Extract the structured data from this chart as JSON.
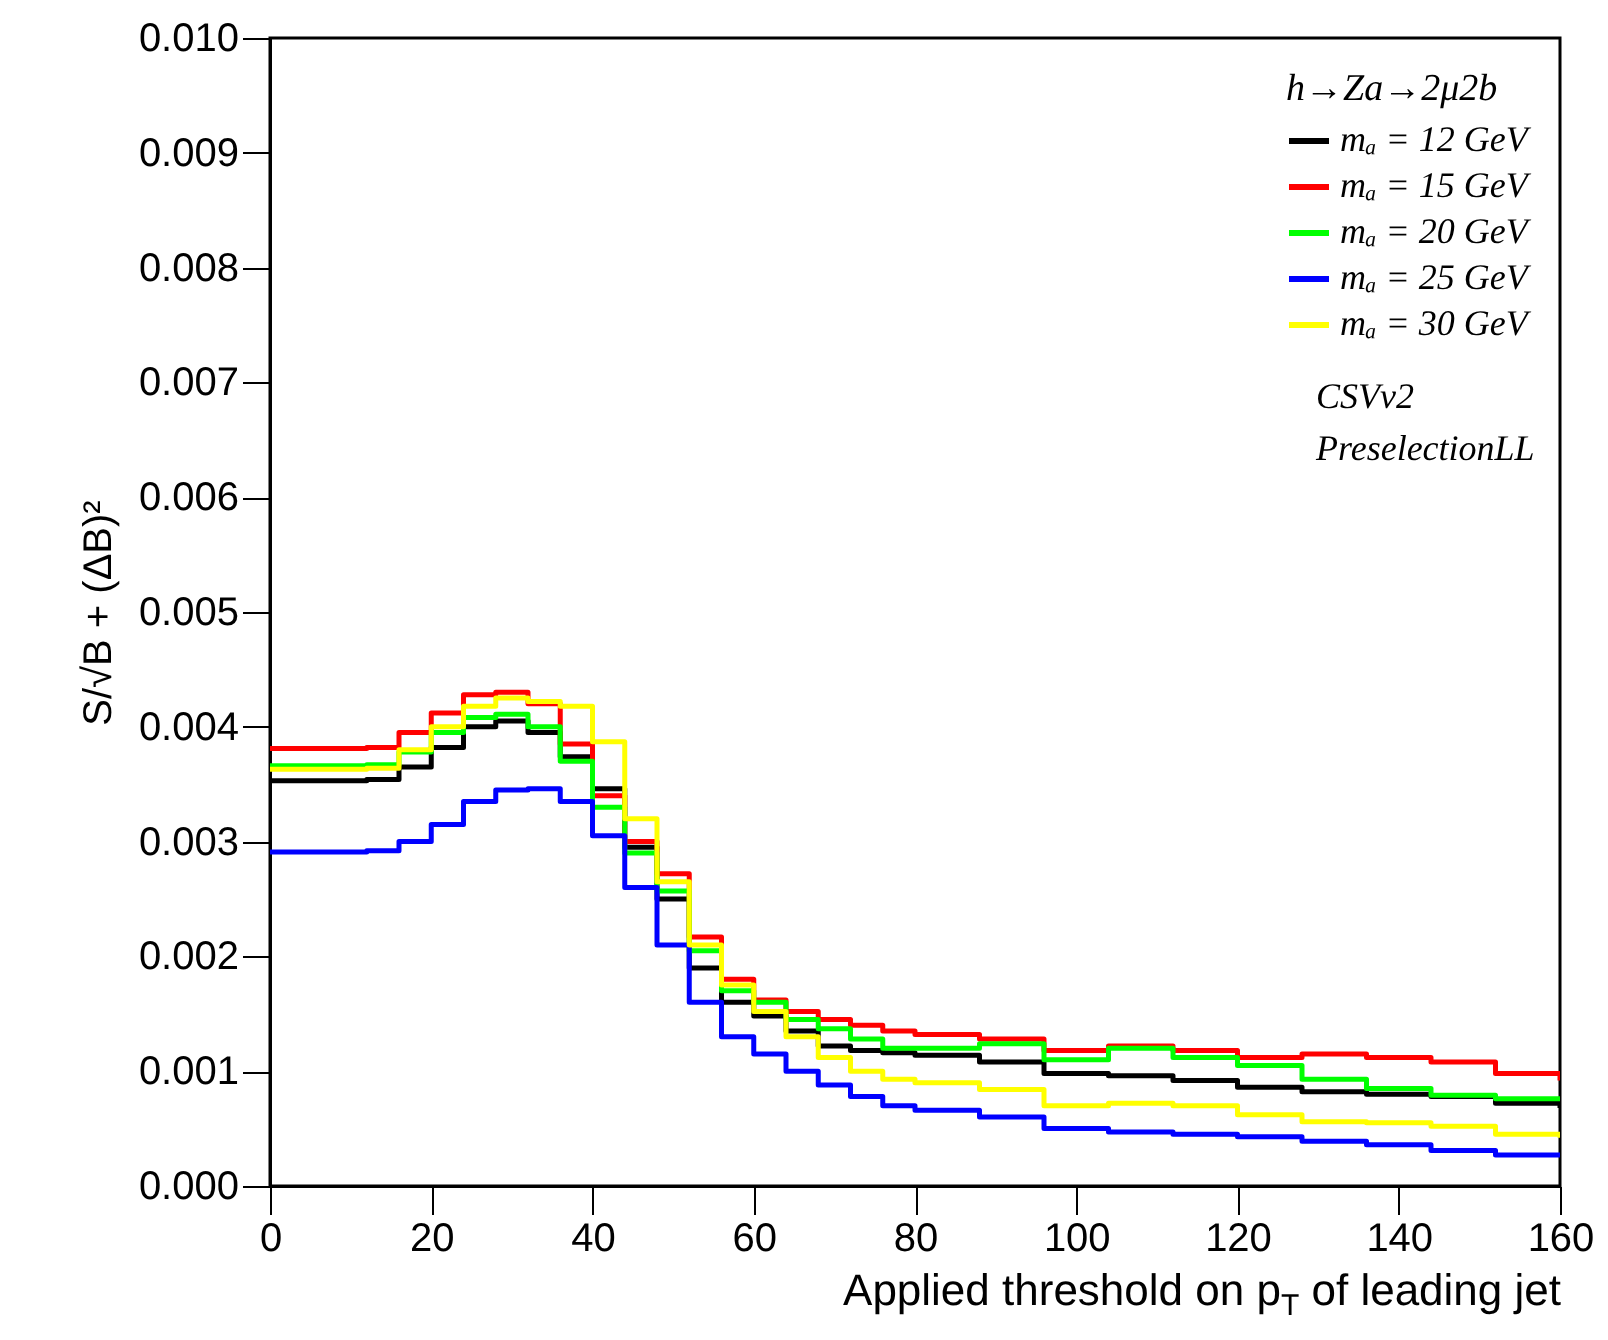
{
  "chart_data": {
    "type": "step",
    "xlabel": "Applied threshold on p$_{T}$ of leading jet",
    "ylabel": "S/√B + (ΔB)²",
    "legend_title": "h→Za→2μ2b",
    "annotations": [
      "CSVv2",
      "PreselectionLL"
    ],
    "x": [
      0,
      4,
      8,
      12,
      16,
      20,
      24,
      28,
      32,
      36,
      40,
      44,
      48,
      52,
      56,
      60,
      64,
      68,
      72,
      76,
      80,
      88,
      96,
      104,
      112,
      120,
      128,
      136,
      144,
      152,
      160
    ],
    "series": [
      {
        "name": "mₐ = 12 GeV",
        "color": "#000000",
        "values": [
          0.00353,
          0.00353,
          0.00353,
          0.00354,
          0.00365,
          0.00382,
          0.004,
          0.00405,
          0.00395,
          0.00374,
          0.00346,
          0.00295,
          0.0025,
          0.0019,
          0.0016,
          0.00148,
          0.00135,
          0.00122,
          0.00118,
          0.00116,
          0.00114,
          0.00108,
          0.00098,
          0.00096,
          0.00092,
          0.00086,
          0.00082,
          0.0008,
          0.00078,
          0.00072,
          0.00068
        ]
      },
      {
        "name": "mₐ = 15 GeV",
        "color": "#ff0000",
        "values": [
          0.00381,
          0.00381,
          0.00381,
          0.00382,
          0.00395,
          0.00412,
          0.00428,
          0.0043,
          0.0042,
          0.00385,
          0.0034,
          0.003,
          0.00272,
          0.00217,
          0.0018,
          0.00162,
          0.00152,
          0.00145,
          0.0014,
          0.00135,
          0.00132,
          0.00128,
          0.00118,
          0.00122,
          0.00118,
          0.00112,
          0.00115,
          0.00112,
          0.00108,
          0.00098,
          0.00092
        ]
      },
      {
        "name": "mₐ = 20 GeV",
        "color": "#00ff00",
        "values": [
          0.00366,
          0.00366,
          0.00366,
          0.00367,
          0.00378,
          0.00395,
          0.00408,
          0.00411,
          0.004,
          0.0037,
          0.0033,
          0.0029,
          0.00257,
          0.00205,
          0.0017,
          0.0016,
          0.00145,
          0.00137,
          0.00128,
          0.0012,
          0.0012,
          0.00124,
          0.0011,
          0.0012,
          0.00112,
          0.00105,
          0.00093,
          0.00085,
          0.00079,
          0.00076,
          0.00076
        ]
      },
      {
        "name": "mₐ = 25 GeV",
        "color": "#0000ff",
        "values": [
          0.00291,
          0.00291,
          0.00291,
          0.00292,
          0.003,
          0.00315,
          0.00335,
          0.00345,
          0.00346,
          0.00335,
          0.00305,
          0.0026,
          0.0021,
          0.0016,
          0.0013,
          0.00115,
          0.001,
          0.00088,
          0.00078,
          0.0007,
          0.00066,
          0.0006,
          0.0005,
          0.00047,
          0.00045,
          0.00043,
          0.00039,
          0.00036,
          0.00031,
          0.00027,
          0.00025
        ]
      },
      {
        "name": "mₐ = 30 GeV",
        "color": "#ffff00",
        "values": [
          0.00363,
          0.00363,
          0.00363,
          0.00364,
          0.0038,
          0.004,
          0.00418,
          0.00425,
          0.00422,
          0.00418,
          0.00387,
          0.0032,
          0.00265,
          0.0021,
          0.00175,
          0.00152,
          0.0013,
          0.00112,
          0.001,
          0.00093,
          0.0009,
          0.00084,
          0.0007,
          0.00072,
          0.0007,
          0.00062,
          0.00056,
          0.00055,
          0.00052,
          0.00045,
          0.00042
        ]
      }
    ],
    "xlim": [
      0,
      160
    ],
    "xticks": [
      0,
      20,
      40,
      60,
      80,
      100,
      120,
      140,
      160
    ],
    "ylim": [
      0,
      0.01
    ],
    "yticks": [
      {
        "value": 0,
        "label": "0.000"
      },
      {
        "value": 0.001,
        "label": "0.001"
      },
      {
        "value": 0.002,
        "label": "0.002"
      },
      {
        "value": 0.003,
        "label": "0.003"
      },
      {
        "value": 0.004,
        "label": "0.004"
      },
      {
        "value": 0.005,
        "label": "0.005"
      },
      {
        "value": 0.006,
        "label": "0.006"
      },
      {
        "value": 0.007,
        "label": "0.007"
      },
      {
        "value": 0.008,
        "label": "0.008"
      },
      {
        "value": 0.009,
        "label": "0.009"
      },
      {
        "value": 0.01,
        "label": "0.010"
      }
    ],
    "grid": false,
    "legend": "top right",
    "line_style": "solid",
    "marker": "none"
  }
}
